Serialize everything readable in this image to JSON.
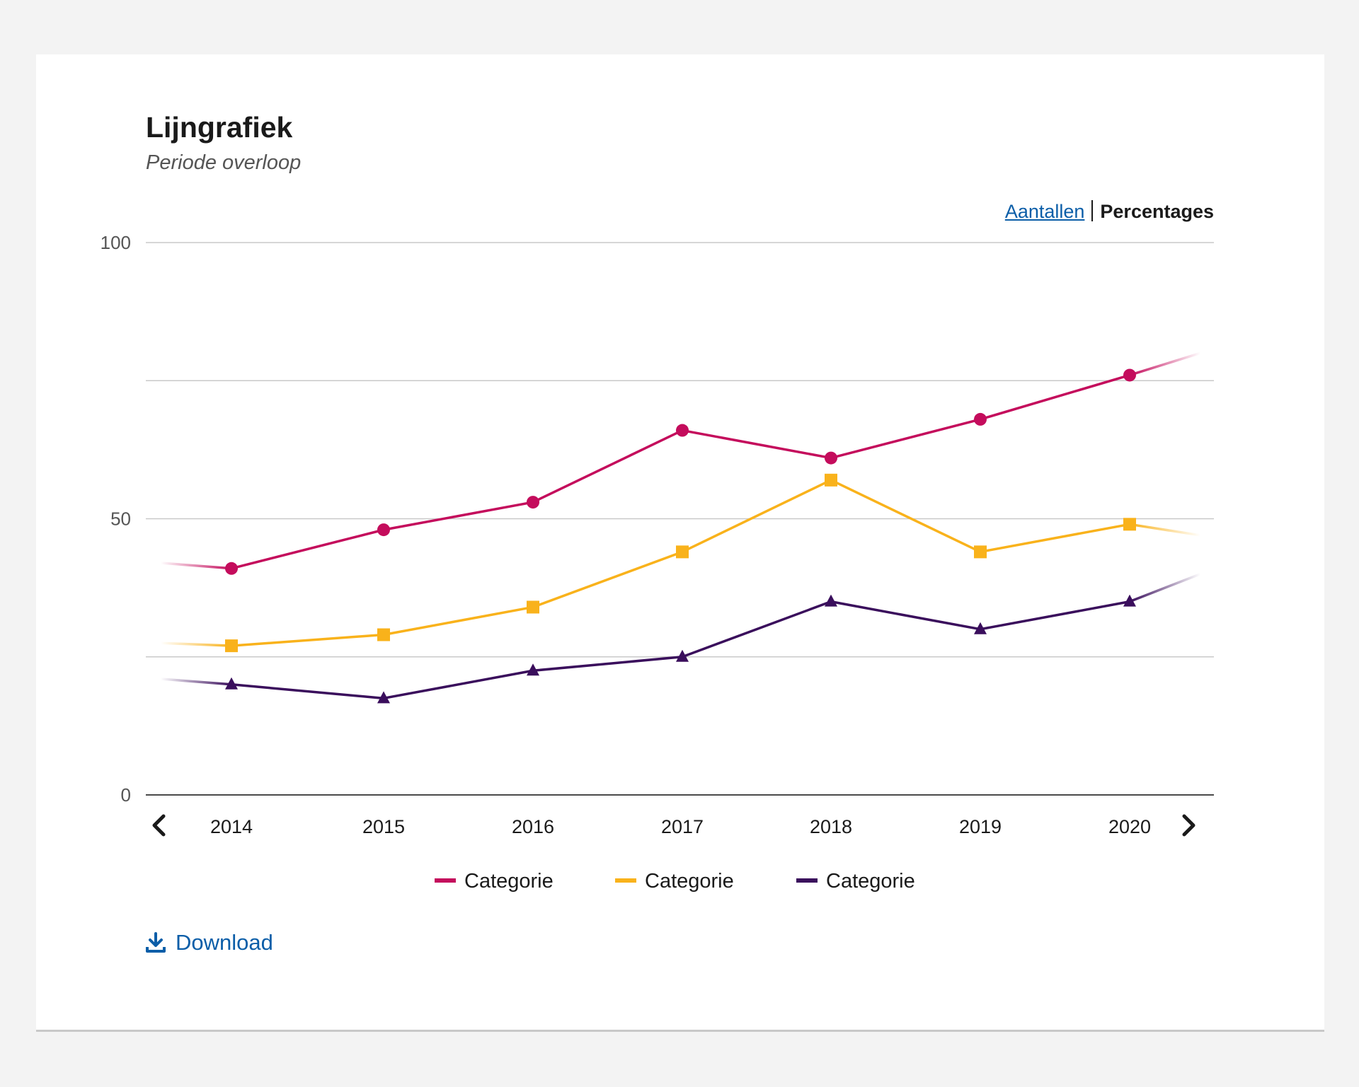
{
  "card": {
    "title": "Lijngrafiek",
    "subtitle": "Periode overloop"
  },
  "toggle": {
    "options": [
      "Aantallen",
      "Percentages"
    ],
    "active": "Percentages"
  },
  "nav": {
    "prev_icon": "chevron-left-icon",
    "next_icon": "chevron-right-icon"
  },
  "download": {
    "label": "Download",
    "icon": "download-icon"
  },
  "chart_data": {
    "type": "line",
    "title": "",
    "xlabel": "",
    "ylabel": "",
    "ylim": [
      0,
      100
    ],
    "yticks": [
      0,
      50,
      100
    ],
    "grid": true,
    "legend_position": "bottom-center",
    "x": [
      "2014",
      "2015",
      "2016",
      "2017",
      "2018",
      "2019",
      "2020"
    ],
    "series": [
      {
        "name": "Categorie",
        "color": "#c40c5c",
        "marker": "circle",
        "values": [
          41,
          48,
          53,
          66,
          61,
          68,
          76
        ],
        "lead_in": 42,
        "lead_out": 80
      },
      {
        "name": "Categorie",
        "color": "#f9b21b",
        "marker": "square",
        "values": [
          27,
          29,
          34,
          44,
          57,
          44,
          49
        ],
        "lead_in": 27.5,
        "lead_out": 47
      },
      {
        "name": "Categorie",
        "color": "#3a0e5c",
        "marker": "triangle",
        "values": [
          20,
          17.5,
          22.5,
          25,
          35,
          30,
          35
        ],
        "lead_in": 21,
        "lead_out": 40
      }
    ]
  }
}
